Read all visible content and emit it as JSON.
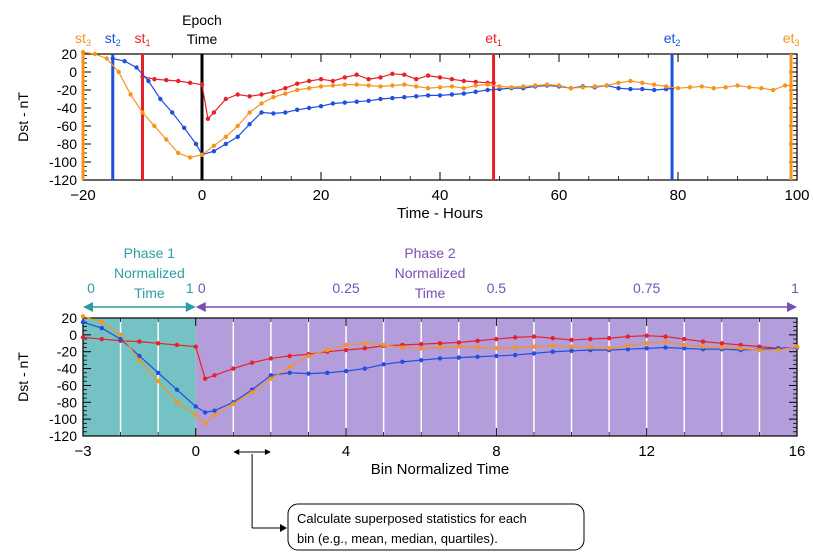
{
  "colors": {
    "red": "#e8202a",
    "blue": "#1f4fe0",
    "orange": "#f7941d",
    "black": "#000000",
    "teal": "#2c9ea3",
    "purple": "#7a4fb5",
    "phase1_bg": "#74c2c3",
    "phase2_bg": "#b39ddb"
  },
  "chart_data": [
    {
      "type": "line",
      "xlabel": "Time - Hours",
      "ylabel": "Dst - nT",
      "xlim": [
        -20,
        100
      ],
      "ylim": [
        -120,
        20
      ],
      "xticks": [
        "-20",
        "0",
        "20",
        "40",
        "60",
        "80",
        "100"
      ],
      "yticks": [
        "20",
        "0",
        "-20",
        "-40",
        "-60",
        "-80",
        "-100",
        "-120"
      ],
      "markers": [
        {
          "label": "st",
          "sub": "3",
          "x": -20,
          "color": "#f7941d"
        },
        {
          "label": "st",
          "sub": "2",
          "x": -15,
          "color": "#1f4fe0"
        },
        {
          "label": "st",
          "sub": "1",
          "x": -10,
          "color": "#e8202a"
        },
        {
          "label": "et",
          "sub": "1",
          "x": 49,
          "color": "#e8202a"
        },
        {
          "label": "et",
          "sub": "2",
          "x": 79,
          "color": "#1f4fe0"
        },
        {
          "label": "et",
          "sub": "3",
          "x": 99,
          "color": "#f7941d"
        }
      ],
      "epoch_label": [
        "Epoch",
        "Time"
      ],
      "series": [
        {
          "color": "#e8202a",
          "x": [
            -10,
            -8,
            -6,
            -4,
            -2,
            0,
            1,
            2,
            4,
            6,
            8,
            10,
            12,
            14,
            16,
            18,
            20,
            22,
            24,
            26,
            28,
            30,
            32,
            34,
            36,
            38,
            40,
            42,
            44,
            46,
            48,
            49
          ],
          "y": [
            -5,
            -8,
            -9,
            -10,
            -12,
            -14,
            -52,
            -45,
            -30,
            -25,
            -27,
            -25,
            -22,
            -18,
            -13,
            -10,
            -8,
            -10,
            -6,
            -3,
            -8,
            -6,
            -2,
            -3,
            -8,
            -4,
            -6,
            -8,
            -10,
            -11,
            -12,
            -12
          ]
        },
        {
          "color": "#1f4fe0",
          "x": [
            -15,
            -13,
            -11,
            -9,
            -7,
            -5,
            -3,
            -1,
            0,
            2,
            4,
            6,
            8,
            10,
            12,
            14,
            16,
            18,
            20,
            22,
            24,
            26,
            28,
            30,
            32,
            34,
            36,
            38,
            40,
            42,
            44,
            46,
            48,
            50,
            52,
            54,
            56,
            58,
            60,
            62,
            64,
            66,
            68,
            70,
            72,
            74,
            76,
            78,
            79
          ],
          "y": [
            15,
            12,
            5,
            -10,
            -30,
            -45,
            -62,
            -80,
            -92,
            -88,
            -80,
            -72,
            -58,
            -45,
            -46,
            -45,
            -42,
            -40,
            -38,
            -35,
            -34,
            -33,
            -32,
            -30,
            -29,
            -28,
            -27,
            -26,
            -26,
            -25,
            -24,
            -22,
            -20,
            -19,
            -18,
            -18,
            -16,
            -15,
            -16,
            -18,
            -16,
            -17,
            -15,
            -18,
            -19,
            -19,
            -20,
            -19,
            -18
          ]
        },
        {
          "color": "#f7941d",
          "x": [
            -20,
            -18,
            -16,
            -14,
            -12,
            -10,
            -8,
            -6,
            -4,
            -2,
            0,
            2,
            4,
            6,
            8,
            10,
            12,
            14,
            16,
            18,
            20,
            22,
            24,
            26,
            28,
            30,
            32,
            34,
            36,
            38,
            40,
            42,
            44,
            46,
            48,
            50,
            52,
            54,
            56,
            58,
            60,
            62,
            64,
            66,
            68,
            70,
            72,
            74,
            76,
            78,
            80,
            82,
            84,
            86,
            88,
            90,
            92,
            94,
            96,
            98,
            99
          ],
          "y": [
            22,
            20,
            15,
            0,
            -25,
            -45,
            -60,
            -75,
            -90,
            -95,
            -92,
            -82,
            -72,
            -60,
            -45,
            -35,
            -28,
            -24,
            -20,
            -18,
            -16,
            -15,
            -14,
            -14,
            -15,
            -16,
            -15,
            -14,
            -16,
            -18,
            -17,
            -16,
            -18,
            -15,
            -14,
            -16,
            -17,
            -16,
            -15,
            -14,
            -15,
            -18,
            -17,
            -16,
            -15,
            -12,
            -10,
            -12,
            -14,
            -16,
            -18,
            -17,
            -16,
            -18,
            -17,
            -15,
            -17,
            -18,
            -20,
            -15,
            -15
          ]
        }
      ]
    },
    {
      "type": "line",
      "xlabel": "Bin Normalized Time",
      "ylabel": "Dst - nT",
      "xlim": [
        -3,
        16
      ],
      "ylim": [
        -120,
        20
      ],
      "xticks": [
        "-3",
        "0",
        "4",
        "8",
        "12",
        "16"
      ],
      "yticks": [
        "20",
        "0",
        "-20",
        "-40",
        "-60",
        "-80",
        "-100",
        "-120"
      ],
      "phase1": {
        "title": [
          "Phase 1",
          "Normalized",
          "Time"
        ],
        "start": "0",
        "end": "1"
      },
      "phase2": {
        "title": [
          "Phase 2",
          "Normalized",
          "Time"
        ],
        "ticks": [
          "0",
          "0.25",
          "0.5",
          "0.75",
          "1"
        ]
      },
      "series": [
        {
          "color": "#e8202a",
          "x": [
            -3,
            -2.5,
            -2,
            -1.5,
            -1,
            -0.5,
            0,
            0.25,
            0.5,
            1,
            1.5,
            2,
            2.5,
            3,
            3.5,
            4,
            4.5,
            5,
            5.5,
            6,
            6.5,
            7,
            7.5,
            8,
            8.5,
            9,
            9.5,
            10,
            10.5,
            11,
            11.5,
            12,
            12.5,
            13,
            13.5,
            14,
            14.5,
            15,
            15.5,
            16
          ],
          "y": [
            -3,
            -5,
            -7,
            -8,
            -10,
            -12,
            -14,
            -52,
            -48,
            -40,
            -33,
            -28,
            -25,
            -23,
            -20,
            -18,
            -16,
            -13,
            -12,
            -11,
            -10,
            -9,
            -7,
            -5,
            -3,
            -2,
            -4,
            -6,
            -5,
            -4,
            -2,
            -1,
            -2,
            -5,
            -8,
            -10,
            -12,
            -14,
            -16,
            -15
          ]
        },
        {
          "color": "#1f4fe0",
          "x": [
            -3,
            -2.5,
            -2,
            -1.5,
            -1,
            -0.5,
            0,
            0.25,
            0.5,
            1,
            1.5,
            2,
            2.5,
            3,
            3.5,
            4,
            4.5,
            5,
            5.5,
            6,
            6.5,
            7,
            7.5,
            8,
            8.5,
            9,
            9.5,
            10,
            10.5,
            11,
            11.5,
            12,
            12.5,
            13,
            13.5,
            14,
            14.5,
            15,
            15.5,
            16
          ],
          "y": [
            15,
            8,
            -5,
            -25,
            -45,
            -65,
            -85,
            -92,
            -90,
            -80,
            -65,
            -48,
            -45,
            -46,
            -45,
            -43,
            -40,
            -35,
            -32,
            -30,
            -28,
            -27,
            -26,
            -25,
            -24,
            -22,
            -20,
            -19,
            -18,
            -18,
            -17,
            -16,
            -15,
            -16,
            -17,
            -17,
            -18,
            -17,
            -16,
            -15
          ]
        },
        {
          "color": "#f7941d",
          "x": [
            -3,
            -2.5,
            -2,
            -1.5,
            -1,
            -0.5,
            0,
            0.25,
            0.5,
            1,
            1.5,
            2,
            2.5,
            3,
            3.5,
            4,
            4.5,
            5,
            5.5,
            6,
            6.5,
            7,
            7.5,
            8,
            8.5,
            9,
            9.5,
            10,
            10.5,
            11,
            11.5,
            12,
            12.5,
            13,
            13.5,
            14,
            14.5,
            15,
            15.5,
            16
          ],
          "y": [
            22,
            15,
            0,
            -30,
            -55,
            -80,
            -95,
            -105,
            -95,
            -82,
            -68,
            -52,
            -38,
            -25,
            -18,
            -12,
            -10,
            -12,
            -15,
            -16,
            -15,
            -14,
            -15,
            -16,
            -15,
            -14,
            -13,
            -14,
            -15,
            -16,
            -13,
            -10,
            -8,
            -12,
            -14,
            -15,
            -16,
            -18,
            -18,
            -14
          ]
        }
      ]
    }
  ],
  "callout": "Calculate superposed statistics for each bin (e.g., mean, median, quartiles)."
}
